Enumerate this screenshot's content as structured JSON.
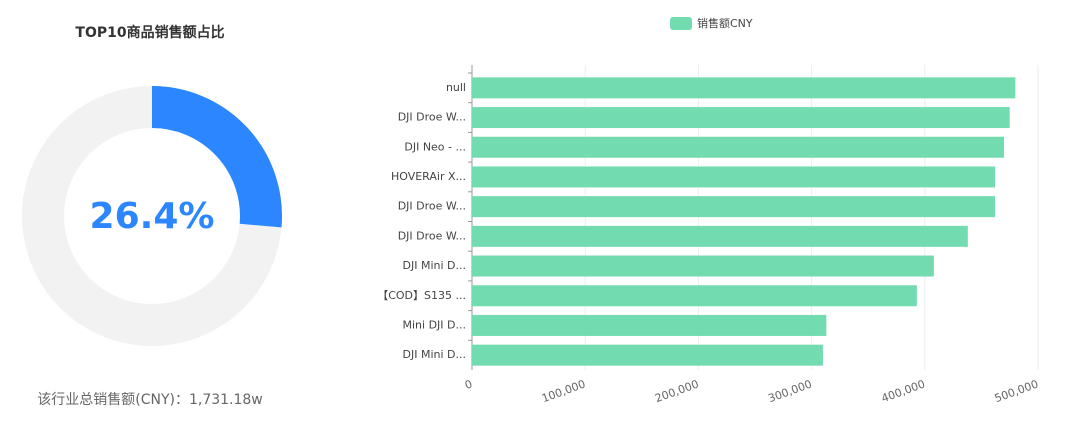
{
  "chart_data": [
    {
      "type": "donut",
      "title": "TOP10商品销售额占比",
      "values": [
        26.4
      ],
      "value_labels": [
        "26.4%"
      ],
      "colors": [
        "#2b86ff",
        "#f2f2f2"
      ],
      "caption": "该行业总销售额(CNY)：1,731.18w"
    },
    {
      "type": "hbar",
      "legend": "top",
      "categories": [
        "null",
        "DJI Droe W...",
        "DJI Neo - ...",
        "HOVERAir X...",
        "DJI Droe W...",
        "DJI Droe W...",
        "DJI Mini D...",
        "【COD】S135 ...",
        "Mini DJI D...",
        "DJI Mini D..."
      ],
      "series": [
        {
          "name": "销售额CNY",
          "color": "#72dcb0",
          "values": [
            480000,
            475000,
            470000,
            462000,
            462000,
            438000,
            408000,
            393000,
            313000,
            310000
          ]
        }
      ],
      "xlim": [
        0,
        500000
      ],
      "xticks": [
        0,
        {
          "value": 100000,
          "label": "100,000"
        },
        {
          "value": 200000,
          "label": "200,000"
        },
        {
          "value": 300000,
          "label": "300,000"
        },
        {
          "value": 400000,
          "label": "400,000"
        },
        {
          "value": 500000,
          "label": "500,000"
        }
      ],
      "grid": true
    }
  ]
}
